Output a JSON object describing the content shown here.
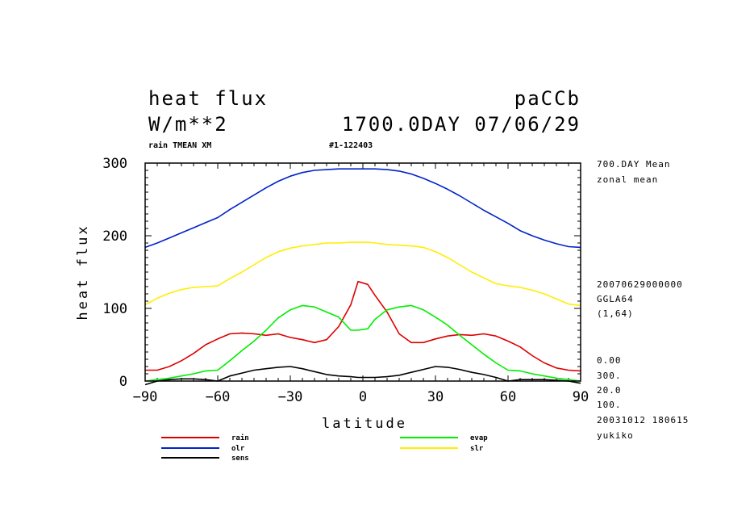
{
  "header": {
    "title": "heat flux",
    "units": "W/m**2",
    "run_id": "paCCb",
    "time_label": "1700.0DAY 07/06/29",
    "subtitle_left": "rain TMEAN XM",
    "subtitle_mid": "#1-122403"
  },
  "side_info": {
    "top": [
      "700.DAY Mean",
      "zonal mean"
    ],
    "middle": [
      "20070629000000",
      "GGLA64",
      "(1,64)"
    ],
    "bottom": [
      "0.00",
      "300.",
      "20.0",
      "100.",
      "20031012 180615",
      "yukiko"
    ]
  },
  "chart_data": {
    "type": "line",
    "xlabel": "latitude",
    "ylabel": "heat flux",
    "xlim": [
      -90,
      90
    ],
    "ylim": [
      0,
      300
    ],
    "xticks": [
      -90,
      -60,
      -30,
      0,
      30,
      60,
      90
    ],
    "yticks": [
      0,
      100,
      200,
      300
    ],
    "x": [
      -90,
      -85,
      -80,
      -75,
      -70,
      -65,
      -60,
      -55,
      -50,
      -45,
      -40,
      -35,
      -30,
      -25,
      -20,
      -15,
      -10,
      -5,
      -2,
      2,
      5,
      10,
      15,
      20,
      25,
      30,
      35,
      40,
      45,
      50,
      55,
      60,
      65,
      70,
      75,
      80,
      85,
      90
    ],
    "series": [
      {
        "name": "rain",
        "color": "#dd0000",
        "values": [
          15,
          15,
          20,
          28,
          38,
          50,
          58,
          65,
          66,
          65,
          63,
          65,
          60,
          57,
          53,
          57,
          75,
          105,
          137,
          133,
          118,
          95,
          65,
          53,
          53,
          58,
          62,
          64,
          63,
          65,
          62,
          55,
          47,
          35,
          25,
          18,
          15,
          14
        ]
      },
      {
        "name": "olr",
        "color": "#0022cc",
        "values": [
          184,
          190,
          197,
          204,
          211,
          218,
          225,
          236,
          246,
          256,
          266,
          275,
          282,
          287,
          290,
          291,
          292,
          292,
          292,
          292,
          292,
          291,
          289,
          285,
          279,
          272,
          264,
          255,
          245,
          235,
          226,
          217,
          207,
          200,
          194,
          189,
          185,
          184
        ]
      },
      {
        "name": "sens",
        "color": "#000000",
        "values": [
          -5,
          0,
          2,
          3,
          3,
          2,
          0,
          7,
          11,
          15,
          17,
          19,
          20,
          17,
          13,
          9,
          7,
          6,
          5,
          5,
          5,
          6,
          8,
          12,
          16,
          20,
          19,
          16,
          12,
          9,
          5,
          0,
          2,
          2,
          2,
          1,
          0,
          -3
        ]
      },
      {
        "name": "evap",
        "color": "#00ee00",
        "values": [
          0,
          2,
          4,
          7,
          10,
          14,
          15,
          28,
          42,
          55,
          70,
          87,
          98,
          104,
          102,
          95,
          88,
          70,
          70,
          72,
          85,
          98,
          102,
          104,
          98,
          88,
          77,
          63,
          50,
          37,
          25,
          15,
          14,
          10,
          7,
          4,
          2,
          0
        ]
      },
      {
        "name": "slr",
        "color": "#ffee00",
        "values": [
          105,
          114,
          121,
          126,
          129,
          130,
          131,
          141,
          150,
          160,
          170,
          178,
          183,
          186,
          188,
          190,
          190,
          191,
          191,
          191,
          190,
          188,
          187,
          186,
          184,
          178,
          170,
          160,
          150,
          142,
          134,
          131,
          129,
          125,
          120,
          113,
          106,
          104
        ]
      }
    ]
  }
}
